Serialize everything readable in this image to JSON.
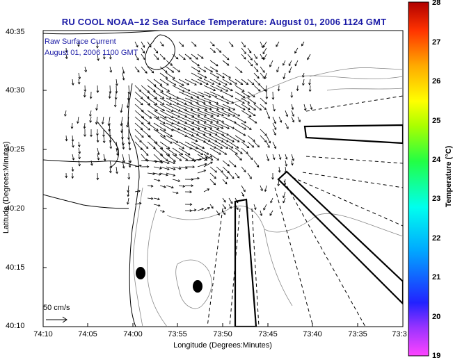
{
  "title": "RU COOL  NOAA–12  Sea Surface Temperature:  August 01, 2006 1124 GMT",
  "overlay": {
    "line1": "Raw Surface Current",
    "line2": "August 01, 2006 1100 GMT"
  },
  "axes": {
    "xlabel": "Longitude (Degrees:Minutes)",
    "ylabel": "Latitude (Degrees:Minutes)",
    "xticks": [
      "74:10",
      "74:05",
      "74:00",
      "73:55",
      "73:50",
      "73:45",
      "73:40",
      "73:35",
      "73:3"
    ],
    "yticks": [
      "40:35",
      "40:30",
      "40:25",
      "40:20",
      "40:15",
      "40:10"
    ]
  },
  "colorbar": {
    "label": "Temperature (°C)",
    "ticks": [
      "28",
      "27",
      "26",
      "25",
      "24",
      "23",
      "22",
      "21",
      "20",
      "19"
    ]
  },
  "scale_label": "50 cm/s",
  "colors": {
    "title": "#1a1aa6",
    "land_outline": "#000000",
    "bathymetry": "#888888"
  }
}
